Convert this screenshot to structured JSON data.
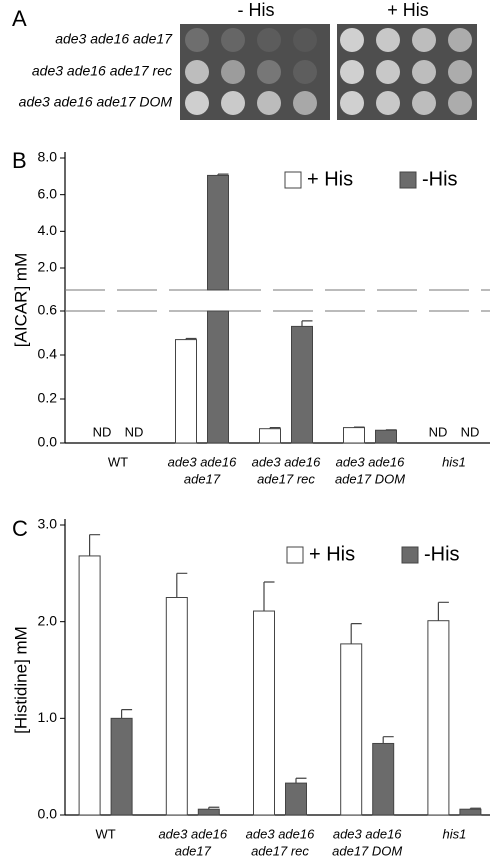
{
  "panel_a": {
    "label": "A",
    "columns": [
      "- His",
      "+ His"
    ],
    "rows": [
      "ade3 ade16 ade17",
      "ade3 ade16 ade17 rec",
      "ade3 ade16 ade17 DOM"
    ]
  },
  "chart_data": [
    {
      "type": "bar",
      "panel": "B",
      "ylabel": "[AICAR] mM",
      "axis_break": true,
      "categories": [
        [
          "WT"
        ],
        [
          "ade3 ade16",
          "ade17"
        ],
        [
          "ade3 ade16",
          "ade17 rec"
        ],
        [
          "ade3 ade16",
          "ade17 DOM"
        ],
        [
          "his1"
        ]
      ],
      "y_segments": [
        {
          "ylim": [
            0,
            0.6
          ],
          "yticks": [
            {
              "value": 0,
              "label": "0.0"
            },
            0.2,
            0.4,
            0.6
          ]
        },
        {
          "ylim": [
            0.8,
            8
          ],
          "yticks": [
            {
              "value": 2,
              "label": "2.0"
            },
            {
              "value": 4,
              "label": "4.0"
            },
            {
              "value": 6,
              "label": "6.0"
            },
            {
              "value": 8,
              "label": "8.0"
            }
          ]
        }
      ],
      "series": [
        {
          "name": "+ His",
          "color": "#ffffff",
          "values": [
            null,
            0.47,
            0.065,
            0.07,
            null
          ],
          "errors": [
            null,
            0.005,
            0.005,
            0.002,
            null
          ],
          "value_labels": [
            "ND",
            null,
            null,
            null,
            "ND"
          ]
        },
        {
          "name": "-His",
          "color": "#6b6b6b",
          "values": [
            null,
            7.05,
            0.53,
            0.058,
            null
          ],
          "errors": [
            null,
            0.07,
            0.025,
            0.002,
            null
          ],
          "value_labels": [
            "ND",
            null,
            null,
            null,
            "ND"
          ]
        }
      ],
      "legend": "upper right"
    },
    {
      "type": "bar",
      "panel": "C",
      "ylabel": "[Histidine] mM",
      "categories": [
        [
          "WT"
        ],
        [
          "ade3 ade16",
          "ade17"
        ],
        [
          "ade3 ade16",
          "ade17 rec"
        ],
        [
          "ade3 ade16",
          "ade17 DOM"
        ],
        [
          "his1"
        ]
      ],
      "ylim": [
        0,
        3
      ],
      "yticks": [
        {
          "value": 0,
          "label": "0.0"
        },
        {
          "value": 1,
          "label": "1.0"
        },
        {
          "value": 2,
          "label": "2.0"
        },
        {
          "value": 3,
          "label": "3.0"
        }
      ],
      "series": [
        {
          "name": "+ His",
          "color": "#ffffff",
          "values": [
            2.68,
            2.25,
            2.11,
            1.77,
            2.01
          ],
          "errors": [
            0.22,
            0.25,
            0.3,
            0.21,
            0.19
          ]
        },
        {
          "name": "-His",
          "color": "#6b6b6b",
          "values": [
            1.0,
            0.06,
            0.33,
            0.74,
            0.06
          ],
          "errors": [
            0.09,
            0.02,
            0.05,
            0.07,
            0.01
          ]
        }
      ],
      "legend": "upper right"
    }
  ]
}
